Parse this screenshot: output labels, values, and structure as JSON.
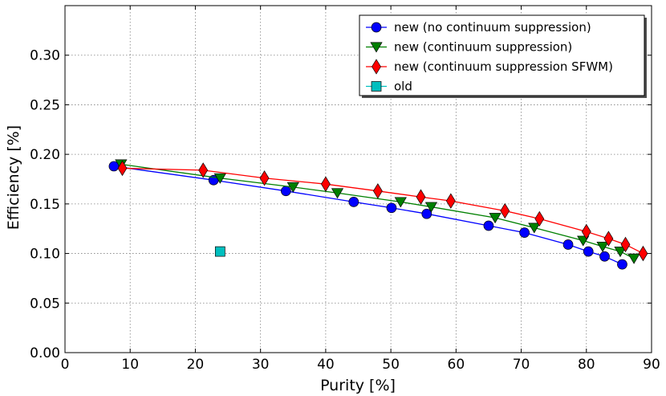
{
  "chart_data": {
    "type": "line",
    "title": "",
    "xlabel": "Purity [%]",
    "ylabel": "Efficiency [%]",
    "xlim": [
      0,
      90
    ],
    "ylim": [
      0,
      0.35
    ],
    "xticks": [
      0,
      10,
      20,
      30,
      40,
      50,
      60,
      70,
      80,
      90
    ],
    "yticks": [
      0.0,
      0.05,
      0.1,
      0.15,
      0.2,
      0.25,
      0.3
    ],
    "xtick_labels": [
      "0",
      "10",
      "20",
      "30",
      "40",
      "50",
      "60",
      "70",
      "80",
      "90"
    ],
    "ytick_labels": [
      "0.00",
      "0.05",
      "0.10",
      "0.15",
      "0.20",
      "0.25",
      "0.30"
    ],
    "grid": true,
    "legend_position": "top-right",
    "series": [
      {
        "name": "new (no continuum suppression)",
        "color": "#0000ff",
        "marker": "circle",
        "x": [
          7.5,
          22.8,
          33.9,
          44.3,
          50.1,
          55.5,
          65.0,
          70.5,
          77.2,
          80.3,
          82.8,
          85.5
        ],
        "y": [
          0.188,
          0.174,
          0.163,
          0.152,
          0.146,
          0.14,
          0.128,
          0.121,
          0.109,
          0.102,
          0.097,
          0.089
        ]
      },
      {
        "name": "new (continuum suppression)",
        "color": "#008000",
        "marker": "triangle-down",
        "x": [
          8.6,
          23.8,
          35.0,
          41.8,
          51.5,
          56.2,
          66.0,
          72.0,
          79.5,
          82.5,
          85.2,
          87.3
        ],
        "y": [
          0.19,
          0.176,
          0.167,
          0.161,
          0.152,
          0.147,
          0.136,
          0.126,
          0.113,
          0.107,
          0.102,
          0.095
        ]
      },
      {
        "name": "new (continuum suppression SFWM)",
        "color": "#ff0000",
        "marker": "diamond",
        "x": [
          8.8,
          21.2,
          30.6,
          40.0,
          48.0,
          54.6,
          59.2,
          67.5,
          72.8,
          80.0,
          83.4,
          86.0,
          88.7
        ],
        "y": [
          0.186,
          0.184,
          0.176,
          0.17,
          0.163,
          0.157,
          0.153,
          0.143,
          0.135,
          0.122,
          0.115,
          0.109,
          0.1
        ]
      },
      {
        "name": "old",
        "color": "#00bfbf",
        "marker": "square",
        "x": [
          23.8
        ],
        "y": [
          0.102
        ]
      }
    ]
  }
}
